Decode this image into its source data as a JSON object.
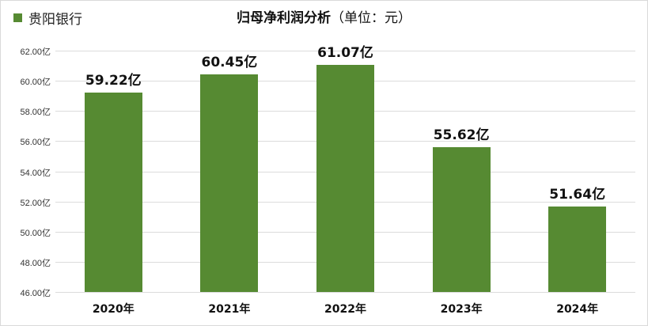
{
  "legend": {
    "label": "贵阳银行",
    "color": "#568a32"
  },
  "title": {
    "main": "归母净利润分析",
    "unit": "（单位：元）"
  },
  "chart_data": {
    "type": "bar",
    "title": "归母净利润分析（单位：元）",
    "xlabel": "",
    "ylabel": "",
    "categories": [
      "2020年",
      "2021年",
      "2022年",
      "2023年",
      "2024年"
    ],
    "series": [
      {
        "name": "贵阳银行",
        "color": "#568a32",
        "values": [
          59.22,
          60.45,
          61.07,
          55.62,
          51.64
        ]
      }
    ],
    "data_labels": [
      "59.22亿",
      "60.45亿",
      "61.07亿",
      "55.62亿",
      "51.64亿"
    ],
    "ylim": [
      46,
      62
    ],
    "yticks": [
      "46.00亿",
      "48.00亿",
      "50.00亿",
      "52.00亿",
      "54.00亿",
      "56.00亿",
      "58.00亿",
      "60.00亿",
      "62.00亿"
    ],
    "grid": true,
    "legend_position": "top-left"
  }
}
